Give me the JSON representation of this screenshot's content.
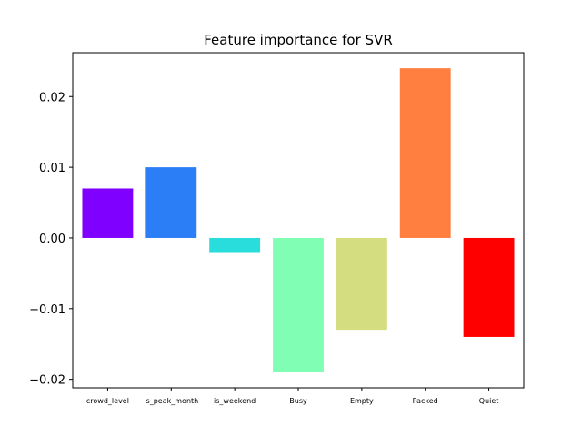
{
  "chart_data": {
    "type": "bar",
    "title": "Feature importance for SVR",
    "xlabel": "",
    "ylabel": "",
    "categories": [
      "crowd_level",
      "is_peak_month",
      "is_weekend",
      "Busy",
      "Empty",
      "Packed",
      "Quiet"
    ],
    "values": [
      0.007,
      0.01,
      -0.002,
      -0.019,
      -0.013,
      0.024,
      -0.014
    ],
    "colors": [
      "#8000ff",
      "#2c7ef7",
      "#2adddd",
      "#80ffb4",
      "#d4dd80",
      "#ff7f41",
      "#ff0000"
    ],
    "ylim": [
      -0.0212,
      0.0262
    ],
    "yticks": [
      -0.02,
      -0.01,
      0.0,
      0.01,
      0.02
    ],
    "ytick_labels": [
      "−0.02",
      "−0.01",
      "0.00",
      "0.01",
      "0.02"
    ],
    "grid": false,
    "legend": "none"
  }
}
